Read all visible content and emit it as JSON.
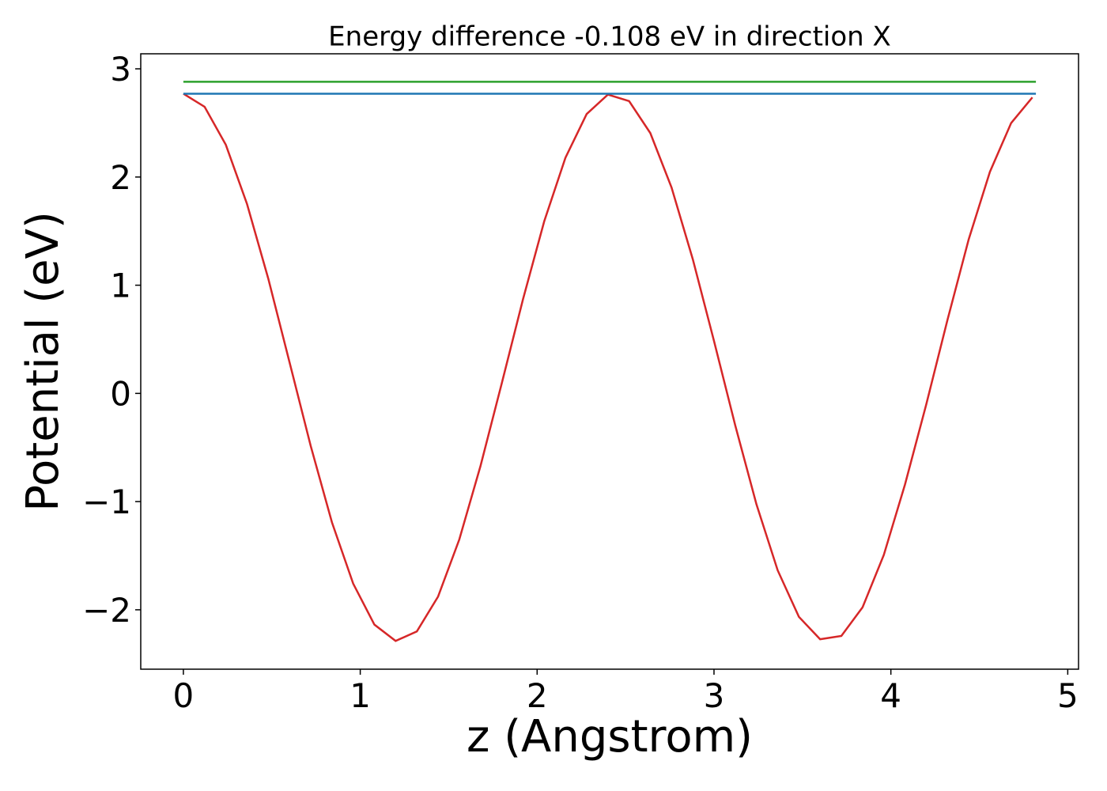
{
  "chart_data": {
    "type": "line",
    "title": "Energy difference -0.108 eV in direction X",
    "xlabel": "z (Angstrom)",
    "ylabel": "Potential (eV)",
    "xlim": [
      -0.241,
      5.061
    ],
    "ylim": [
      -2.549,
      3.139
    ],
    "xticks": [
      0,
      1,
      2,
      3,
      4,
      5
    ],
    "yticks": [
      {
        "value": -2,
        "label": "−2"
      },
      {
        "value": -1,
        "label": "−1"
      },
      0,
      1,
      2,
      3
    ],
    "series": [
      {
        "color": "#d62728",
        "x": [
          0,
          0.12,
          0.24,
          0.36,
          0.48,
          0.6,
          0.72,
          0.84,
          0.96,
          1.08,
          1.2,
          1.32,
          1.44,
          1.56,
          1.68,
          1.8,
          1.92,
          2.04,
          2.16,
          2.28,
          2.4,
          2.52,
          2.64,
          2.76,
          2.88,
          3.0,
          3.12,
          3.24,
          3.36,
          3.48,
          3.6,
          3.72,
          3.84,
          3.96,
          4.08,
          4.2,
          4.32,
          4.44,
          4.56,
          4.68,
          4.8
        ],
        "values": [
          2.77,
          2.649,
          2.298,
          1.75,
          1.061,
          0.289,
          -0.486,
          -1.192,
          -1.758,
          -2.137,
          -2.288,
          -2.2,
          -1.878,
          -1.35,
          -0.67,
          0.093,
          0.869,
          1.59,
          2.178,
          2.582,
          2.762,
          2.702,
          2.406,
          1.903,
          1.241,
          0.485,
          -0.295,
          -1.025,
          -1.635,
          -2.065,
          -2.272,
          -2.242,
          -1.977,
          -1.493,
          -0.841,
          -0.102,
          0.679,
          1.424,
          2.048,
          2.499,
          2.736
        ]
      },
      {
        "color": "#2ca02c",
        "x": [
          0,
          4.82
        ],
        "values": [
          2.88,
          2.88
        ]
      },
      {
        "color": "#1f77b4",
        "x": [
          0,
          4.82
        ],
        "values": [
          2.77,
          2.77
        ]
      }
    ]
  }
}
